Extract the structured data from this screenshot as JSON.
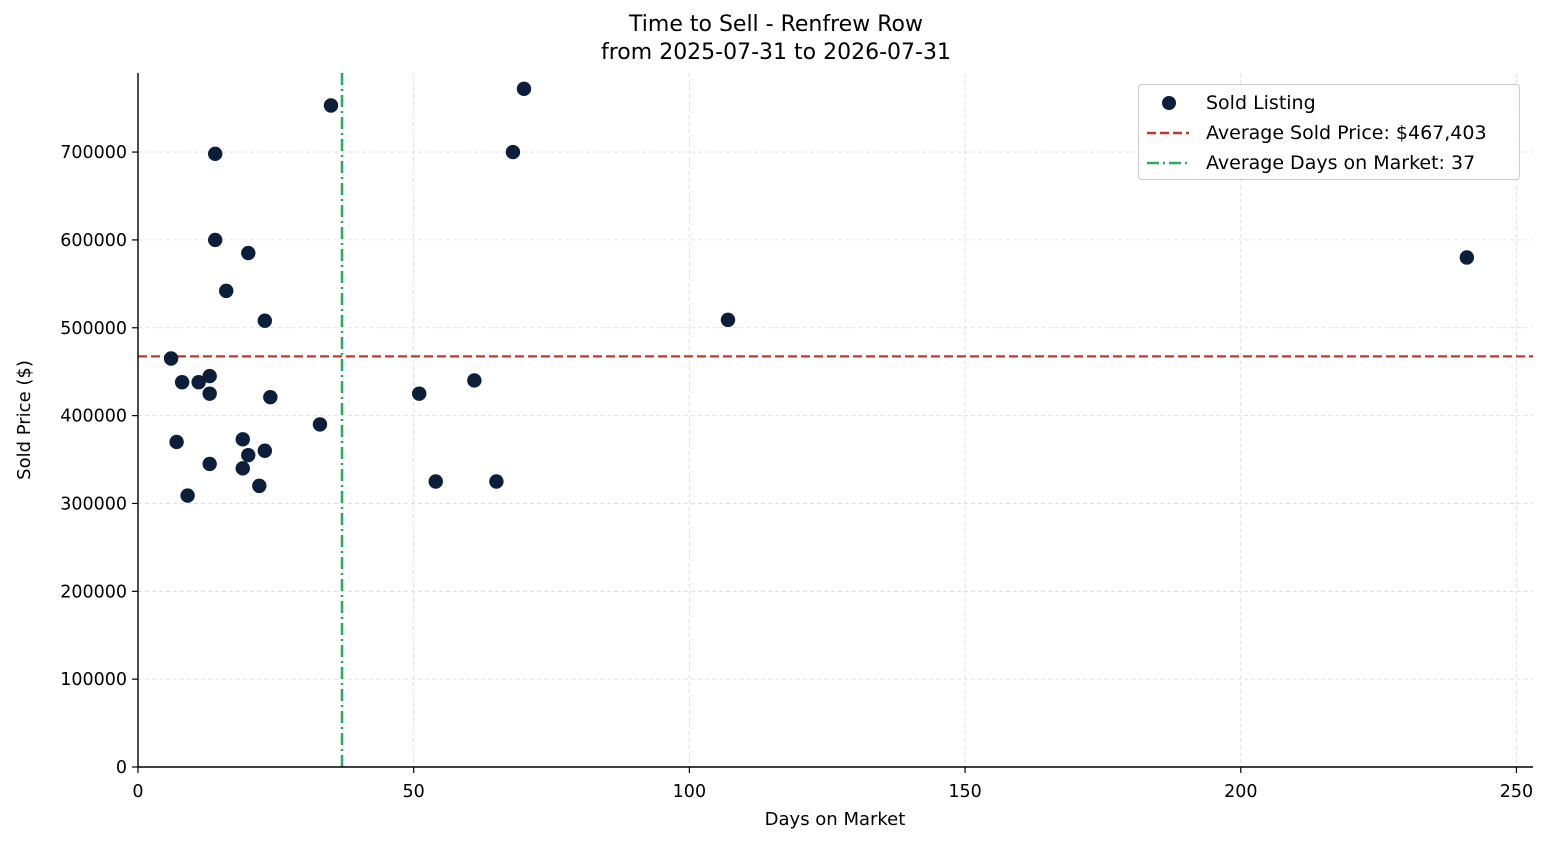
{
  "chart_data": {
    "type": "scatter",
    "title_lines": [
      "Time to Sell - Renfrew Row",
      "from 2025-07-31 to 2026-07-31"
    ],
    "xlabel": "Days on Market",
    "ylabel": "Sold Price ($)",
    "xlim": [
      0,
      253
    ],
    "ylim": [
      0,
      790000
    ],
    "xticks": [
      0,
      50,
      100,
      150,
      200,
      250
    ],
    "yticks": [
      0,
      100000,
      200000,
      300000,
      400000,
      500000,
      600000,
      700000
    ],
    "grid": true,
    "legend_position": "top-right",
    "series": [
      {
        "name": "Sold Listing",
        "color": "#0b1f3a",
        "points": [
          {
            "x": 6,
            "y": 465000
          },
          {
            "x": 7,
            "y": 370000
          },
          {
            "x": 8,
            "y": 438000
          },
          {
            "x": 9,
            "y": 309000
          },
          {
            "x": 11,
            "y": 438000
          },
          {
            "x": 13,
            "y": 445000
          },
          {
            "x": 13,
            "y": 425000
          },
          {
            "x": 13,
            "y": 345000
          },
          {
            "x": 14,
            "y": 698000
          },
          {
            "x": 14,
            "y": 600000
          },
          {
            "x": 16,
            "y": 542000
          },
          {
            "x": 19,
            "y": 373000
          },
          {
            "x": 19,
            "y": 340000
          },
          {
            "x": 20,
            "y": 585000
          },
          {
            "x": 20,
            "y": 355000
          },
          {
            "x": 22,
            "y": 320000
          },
          {
            "x": 23,
            "y": 508000
          },
          {
            "x": 23,
            "y": 360000
          },
          {
            "x": 24,
            "y": 421000
          },
          {
            "x": 33,
            "y": 390000
          },
          {
            "x": 35,
            "y": 753000
          },
          {
            "x": 51,
            "y": 425000
          },
          {
            "x": 54,
            "y": 325000
          },
          {
            "x": 61,
            "y": 440000
          },
          {
            "x": 65,
            "y": 325000
          },
          {
            "x": 68,
            "y": 700000
          },
          {
            "x": 70,
            "y": 772000
          },
          {
            "x": 107,
            "y": 509000
          },
          {
            "x": 241,
            "y": 580000
          }
        ]
      }
    ],
    "reference_lines": [
      {
        "orientation": "horizontal",
        "value": 467403,
        "label": "Average Sold Price: $467,403",
        "color": "#c0392b",
        "style": "dashed"
      },
      {
        "orientation": "vertical",
        "value": 37,
        "label": "Average Days on Market: 37",
        "color": "#27ae60",
        "style": "dashdot"
      }
    ]
  }
}
